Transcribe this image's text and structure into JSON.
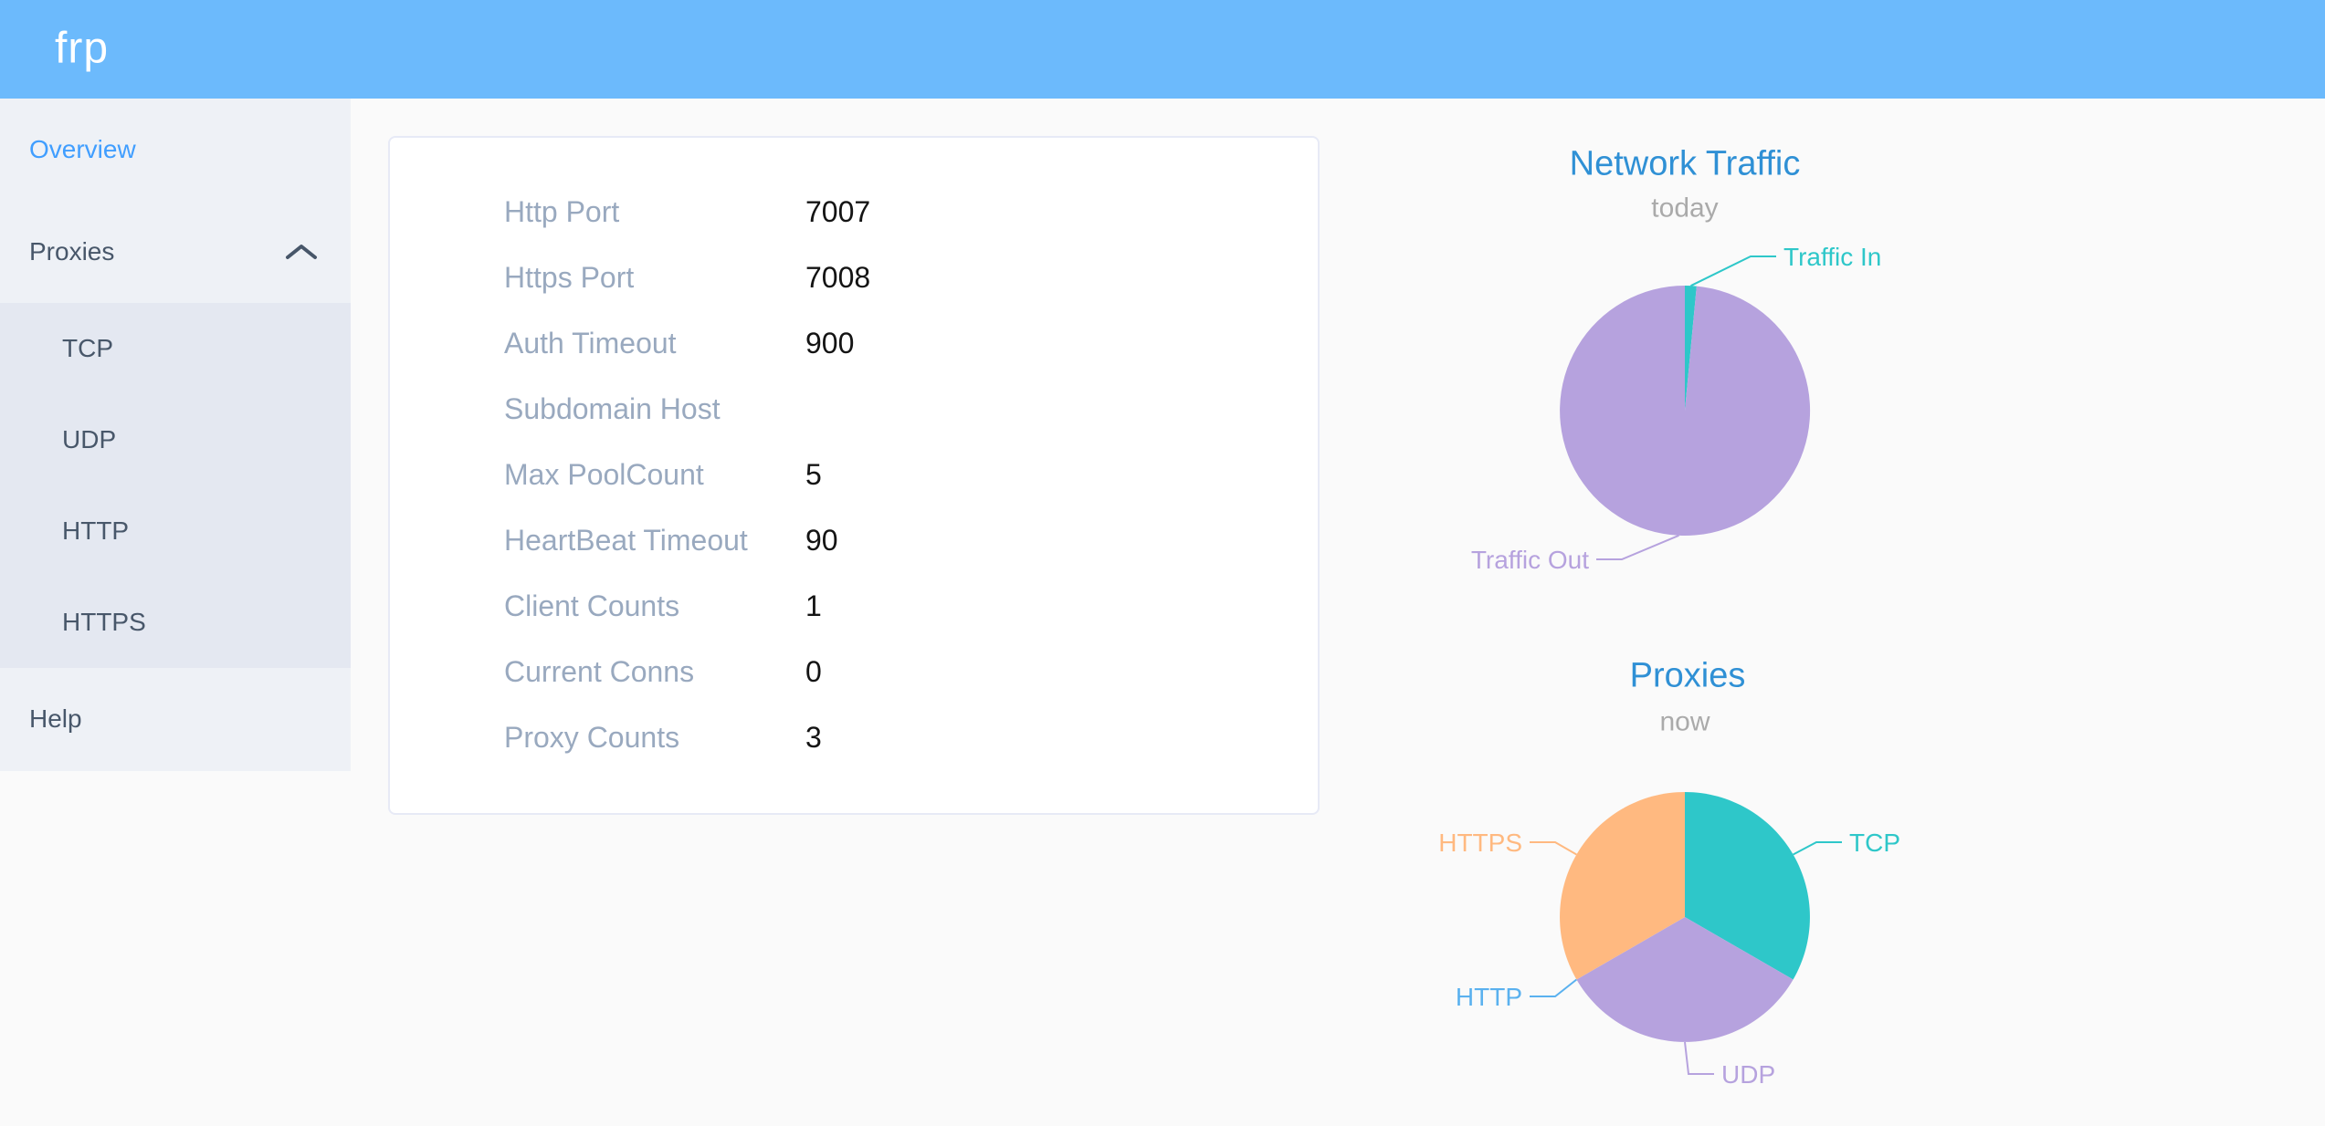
{
  "header": {
    "logo": "frp"
  },
  "palette": {
    "header_bg": "#6cbafc",
    "sidebar_bg": "#eef1f6",
    "submenu_bg": "#e4e8f1",
    "menu_text": "#48576a",
    "menu_active": "#409eff",
    "card_border": "#e7eaf6",
    "label_gray": "#99a9bf",
    "chart_title_blue": "#2f90d5",
    "teal": "#2ec7c9",
    "purple": "#b6a2de",
    "blue": "#5ab1ef",
    "orange": "#ffb980"
  },
  "sidebar": {
    "items": [
      {
        "label": "Overview",
        "active": true
      },
      {
        "label": "Proxies",
        "expanded": true,
        "icon": "chevron-up",
        "children": [
          {
            "label": "TCP"
          },
          {
            "label": "UDP"
          },
          {
            "label": "HTTP"
          },
          {
            "label": "HTTPS"
          }
        ]
      },
      {
        "label": "Help"
      }
    ]
  },
  "overview": {
    "rows": [
      {
        "label": "Http Port",
        "value": "7007"
      },
      {
        "label": "Https Port",
        "value": "7008"
      },
      {
        "label": "Auth Timeout",
        "value": "900"
      },
      {
        "label": "Subdomain Host",
        "value": ""
      },
      {
        "label": "Max PoolCount",
        "value": "5"
      },
      {
        "label": "HeartBeat Timeout",
        "value": "90"
      },
      {
        "label": "Client Counts",
        "value": "1"
      },
      {
        "label": "Current Conns",
        "value": "0"
      },
      {
        "label": "Proxy Counts",
        "value": "3"
      }
    ]
  },
  "chart_data": [
    {
      "type": "pie",
      "title": "Network Traffic",
      "subtitle": "today",
      "legend_position": "none",
      "label_style": "outside-leader-lines",
      "slices": [
        {
          "label": "Traffic In",
          "percent": 1.5,
          "color": "#2ec7c9"
        },
        {
          "label": "Traffic Out",
          "percent": 98.5,
          "color": "#b6a2de"
        }
      ]
    },
    {
      "type": "pie",
      "title": "Proxies",
      "subtitle": "now",
      "legend_position": "none",
      "label_style": "outside-leader-lines",
      "slices": [
        {
          "label": "TCP",
          "value": 1,
          "color": "#2ec7c9"
        },
        {
          "label": "UDP",
          "value": 1,
          "color": "#b6a2de"
        },
        {
          "label": "HTTP",
          "value": 0,
          "color": "#5ab1ef"
        },
        {
          "label": "HTTPS",
          "value": 1,
          "color": "#ffb980"
        }
      ]
    }
  ]
}
